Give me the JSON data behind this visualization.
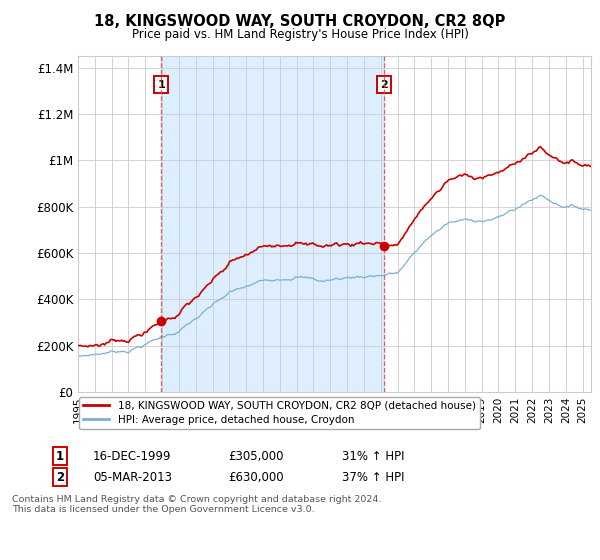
{
  "title": "18, KINGSWOOD WAY, SOUTH CROYDON, CR2 8QP",
  "subtitle": "Price paid vs. HM Land Registry's House Price Index (HPI)",
  "ylabel_ticks": [
    "£0",
    "£200K",
    "£400K",
    "£600K",
    "£800K",
    "£1M",
    "£1.2M",
    "£1.4M"
  ],
  "ytick_values": [
    0,
    200000,
    400000,
    600000,
    800000,
    1000000,
    1200000,
    1400000
  ],
  "ylim": [
    0,
    1450000
  ],
  "xlim_start": 1995.0,
  "xlim_end": 2025.5,
  "grid_color": "#cccccc",
  "bg_color": "#ffffff",
  "shade_color": "#ddeeff",
  "sale1_x": 1999.958,
  "sale1_y": 305000,
  "sale2_x": 2013.17,
  "sale2_y": 630000,
  "marker_color": "#cc0000",
  "sale_color": "#cc0000",
  "hpi_color": "#7ab0d4",
  "legend_sale_label": "18, KINGSWOOD WAY, SOUTH CROYDON, CR2 8QP (detached house)",
  "legend_hpi_label": "HPI: Average price, detached house, Croydon",
  "footnote3": "Contains HM Land Registry data © Crown copyright and database right 2024.",
  "footnote4": "This data is licensed under the Open Government Licence v3.0.",
  "dashed_x1": 1999.958,
  "dashed_x2": 2013.17
}
